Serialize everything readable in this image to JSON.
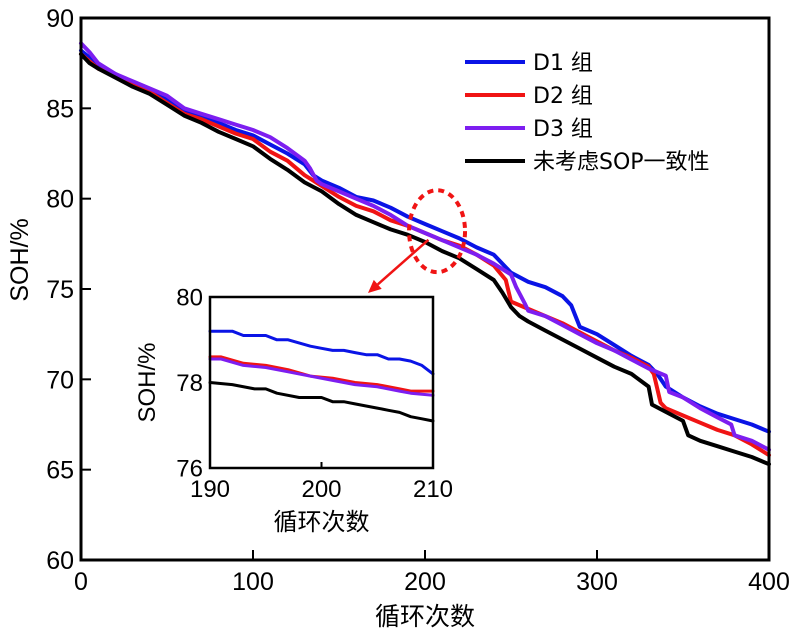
{
  "chart_data": [
    {
      "id": "main",
      "type": "line",
      "title": "",
      "xlabel": "循环次数",
      "ylabel": "SOH/%",
      "xlim": [
        0,
        400
      ],
      "ylim": [
        60,
        90
      ],
      "xticks": [
        0,
        100,
        200,
        300,
        400
      ],
      "yticks": [
        60,
        65,
        70,
        75,
        80,
        85,
        90
      ],
      "xtick_labels": [
        "0",
        "100",
        "200",
        "300",
        "400"
      ],
      "ytick_labels": [
        "60",
        "65",
        "70",
        "75",
        "80",
        "85",
        "90"
      ],
      "grid": false,
      "legend_position": "top-right",
      "series": [
        {
          "name": "D1 组",
          "color": "#0a14e6",
          "x": [
            0,
            5,
            10,
            20,
            30,
            40,
            50,
            60,
            70,
            80,
            90,
            100,
            110,
            120,
            130,
            135,
            140,
            150,
            160,
            170,
            180,
            190,
            200,
            210,
            220,
            230,
            240,
            250,
            260,
            270,
            280,
            285,
            290,
            300,
            310,
            320,
            330,
            335,
            340,
            350,
            360,
            370,
            380,
            390,
            400
          ],
          "y": [
            88.2,
            87.8,
            87.4,
            86.9,
            86.4,
            86.0,
            85.5,
            84.8,
            84.5,
            84.2,
            83.8,
            83.5,
            83.0,
            82.5,
            81.9,
            81.3,
            81.0,
            80.6,
            80.1,
            79.9,
            79.5,
            79.0,
            78.6,
            78.2,
            77.8,
            77.3,
            76.9,
            75.9,
            75.4,
            75.1,
            74.6,
            74.1,
            72.9,
            72.5,
            71.9,
            71.3,
            70.8,
            70.3,
            69.6,
            69.0,
            68.5,
            68.1,
            67.8,
            67.5,
            67.1
          ]
        },
        {
          "name": "D2 组",
          "color": "#f01414",
          "x": [
            0,
            5,
            10,
            20,
            30,
            40,
            50,
            60,
            70,
            80,
            90,
            100,
            110,
            120,
            130,
            135,
            140,
            150,
            160,
            170,
            180,
            190,
            200,
            210,
            220,
            230,
            240,
            247,
            250,
            260,
            270,
            280,
            290,
            300,
            310,
            320,
            330,
            333,
            337,
            340,
            350,
            360,
            370,
            380,
            390,
            400
          ],
          "y": [
            88.0,
            87.6,
            87.2,
            86.8,
            86.3,
            85.9,
            85.3,
            84.7,
            84.4,
            84.0,
            83.6,
            83.3,
            82.6,
            82.1,
            81.3,
            81.0,
            80.7,
            80.1,
            79.6,
            79.3,
            78.8,
            78.5,
            78.1,
            77.7,
            77.4,
            76.9,
            76.3,
            75.5,
            74.3,
            73.9,
            73.5,
            73.1,
            72.6,
            72.1,
            71.6,
            71.2,
            70.7,
            70.3,
            68.7,
            68.4,
            68.0,
            67.6,
            67.2,
            66.9,
            66.4,
            65.8
          ]
        },
        {
          "name": "D3 组",
          "color": "#7d1ef0",
          "x": [
            0,
            5,
            10,
            20,
            30,
            40,
            50,
            60,
            70,
            80,
            90,
            100,
            110,
            120,
            130,
            133,
            137,
            140,
            150,
            160,
            170,
            180,
            190,
            200,
            210,
            220,
            230,
            240,
            250,
            253,
            258,
            260,
            270,
            280,
            290,
            300,
            310,
            320,
            330,
            340,
            342,
            350,
            360,
            370,
            378,
            380,
            390,
            400
          ],
          "y": [
            88.6,
            88.1,
            87.5,
            86.9,
            86.5,
            86.1,
            85.7,
            85.0,
            84.7,
            84.4,
            84.1,
            83.8,
            83.4,
            82.8,
            82.1,
            81.7,
            81.0,
            80.8,
            80.4,
            80.0,
            79.6,
            79.1,
            78.5,
            78.1,
            77.7,
            77.3,
            76.9,
            76.4,
            75.8,
            75.1,
            74.2,
            73.8,
            73.5,
            73.0,
            72.5,
            72.0,
            71.6,
            71.1,
            70.6,
            70.2,
            69.3,
            69.0,
            68.4,
            67.9,
            67.5,
            66.9,
            66.6,
            66.1
          ]
        },
        {
          "name": "未考虑SOP一致性",
          "color": "#000000",
          "x": [
            0,
            5,
            10,
            20,
            30,
            40,
            50,
            60,
            70,
            80,
            90,
            100,
            110,
            120,
            130,
            140,
            150,
            160,
            170,
            180,
            190,
            200,
            210,
            220,
            230,
            240,
            245,
            250,
            255,
            260,
            270,
            280,
            290,
            300,
            310,
            320,
            330,
            332,
            340,
            350,
            353,
            360,
            370,
            380,
            390,
            400
          ],
          "y": [
            88.0,
            87.5,
            87.2,
            86.7,
            86.2,
            85.8,
            85.2,
            84.6,
            84.2,
            83.7,
            83.3,
            82.9,
            82.2,
            81.6,
            80.9,
            80.4,
            79.7,
            79.1,
            78.7,
            78.3,
            78.0,
            77.6,
            77.1,
            76.7,
            76.1,
            75.5,
            74.8,
            74.0,
            73.5,
            73.2,
            72.7,
            72.2,
            71.7,
            71.2,
            70.7,
            70.3,
            69.6,
            68.6,
            68.2,
            67.7,
            66.9,
            66.6,
            66.3,
            66.0,
            65.7,
            65.3
          ]
        }
      ],
      "annotations": [
        {
          "type": "dashed-ellipse",
          "color": "#f01414",
          "center": [
            207,
            78.2
          ],
          "note": "highlighted region zoomed in inset"
        },
        {
          "type": "arrow",
          "color": "#f01414",
          "from": [
            195,
            77.5
          ],
          "to": [
            170,
            75.1
          ],
          "note": "points from ellipse to inset"
        }
      ]
    },
    {
      "id": "inset",
      "type": "line",
      "title": "",
      "xlabel": "循环次数",
      "ylabel": "SOH/%",
      "xlim": [
        190,
        210
      ],
      "ylim": [
        76,
        80
      ],
      "xticks": [
        190,
        200,
        210
      ],
      "yticks": [
        76,
        78,
        80
      ],
      "xtick_labels": [
        "190",
        "200",
        "210"
      ],
      "ytick_labels": [
        "76",
        "78",
        "80"
      ],
      "grid": false,
      "series": [
        {
          "name": "D1 组",
          "color": "#0a14e6",
          "x": [
            190,
            192,
            193,
            195,
            196,
            197,
            199,
            200,
            201,
            202,
            203,
            204,
            205,
            206,
            207,
            208,
            209,
            210
          ],
          "y": [
            79.2,
            79.2,
            79.1,
            79.1,
            79.0,
            79.0,
            78.85,
            78.8,
            78.75,
            78.75,
            78.7,
            78.65,
            78.65,
            78.55,
            78.55,
            78.5,
            78.4,
            78.2
          ]
        },
        {
          "name": "D2 组",
          "color": "#f01414",
          "x": [
            190,
            191,
            193,
            195,
            197,
            199,
            201,
            203,
            205,
            207,
            208,
            210
          ],
          "y": [
            78.6,
            78.6,
            78.45,
            78.4,
            78.3,
            78.15,
            78.1,
            78.0,
            77.95,
            77.85,
            77.8,
            77.8
          ]
        },
        {
          "name": "D3 组",
          "color": "#7d1ef0",
          "x": [
            190,
            191,
            193,
            195,
            197,
            199,
            201,
            203,
            205,
            207,
            208,
            210
          ],
          "y": [
            78.55,
            78.55,
            78.4,
            78.35,
            78.25,
            78.15,
            78.05,
            77.95,
            77.9,
            77.8,
            77.75,
            77.7
          ]
        },
        {
          "name": "未考虑SOP一致性",
          "color": "#000000",
          "x": [
            190,
            192,
            194,
            195,
            196,
            198,
            200,
            201,
            202,
            203,
            204,
            205,
            206,
            207,
            208,
            209,
            210
          ],
          "y": [
            78.0,
            77.95,
            77.85,
            77.85,
            77.75,
            77.65,
            77.65,
            77.55,
            77.55,
            77.5,
            77.45,
            77.4,
            77.35,
            77.3,
            77.2,
            77.15,
            77.1
          ]
        }
      ]
    }
  ],
  "legend": {
    "items": [
      {
        "label": "D1 组",
        "color": "#0a14e6"
      },
      {
        "label": "D2 组",
        "color": "#f01414"
      },
      {
        "label": "D3 组",
        "color": "#7d1ef0"
      },
      {
        "label": "未考虑SOP一致性",
        "color": "#000000"
      }
    ]
  }
}
